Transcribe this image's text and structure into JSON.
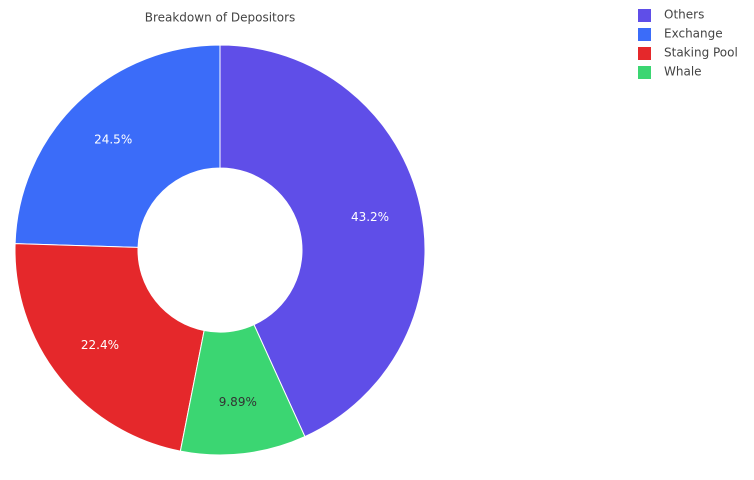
{
  "chart_data": {
    "type": "donut",
    "title": "Breakdown of Depositors",
    "categories": [
      "Others",
      "Exchange",
      "Staking Pool",
      "Whale"
    ],
    "values": [
      43.2,
      24.5,
      22.4,
      9.89
    ],
    "value_labels": [
      "43.2%",
      "24.5%",
      "22.4%",
      "9.89%"
    ],
    "colors": [
      "#5f4ee8",
      "#3b6cf9",
      "#e5282b",
      "#3bd672"
    ]
  }
}
